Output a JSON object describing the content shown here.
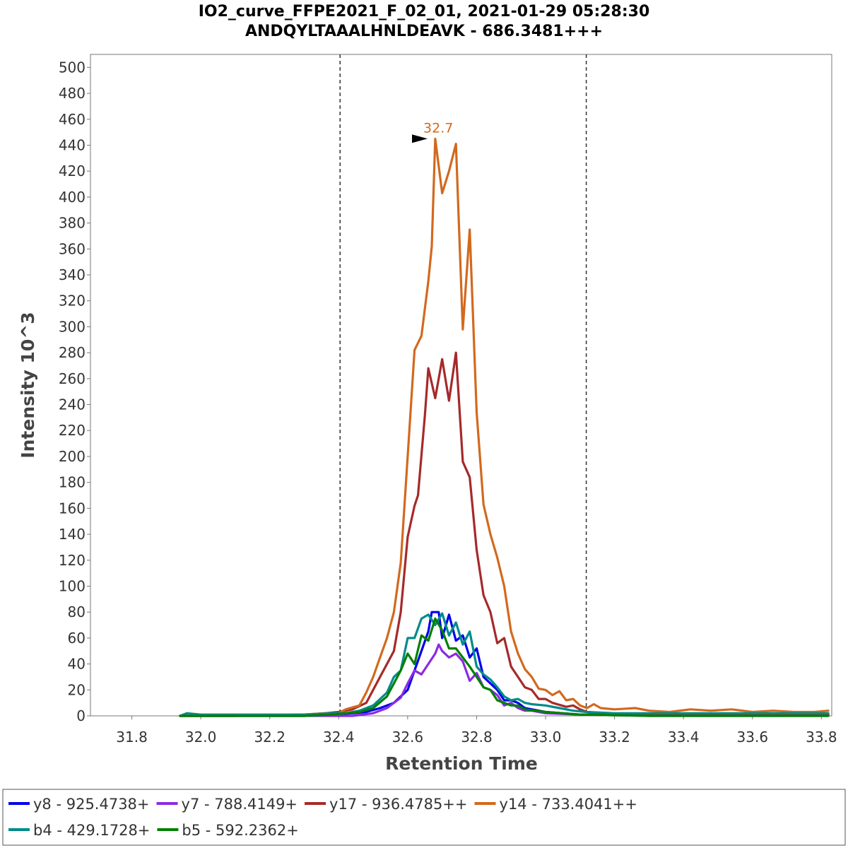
{
  "chart_data": {
    "type": "line",
    "title": "IO2_curve_FFPE2021_F_02_01, 2021-01-29 05:28:30",
    "subtitle": "ANDQYLTAAALHNLDEAVK - 686.3481+++",
    "xlabel": "Retention Time",
    "ylabel": "Intensity 10^3",
    "xlim": [
      31.68,
      33.83
    ],
    "ylim": [
      0,
      510
    ],
    "x_ticks": [
      "31.8",
      "32.0",
      "32.2",
      "32.4",
      "32.6",
      "32.8",
      "33.0",
      "33.2",
      "33.4",
      "33.6",
      "33.8"
    ],
    "y_ticks": [
      "0",
      "20",
      "40",
      "60",
      "80",
      "100",
      "120",
      "140",
      "160",
      "180",
      "200",
      "220",
      "240",
      "260",
      "280",
      "300",
      "320",
      "340",
      "360",
      "380",
      "400",
      "420",
      "440",
      "460",
      "480",
      "500"
    ],
    "integration_bounds": [
      32.404,
      33.118
    ],
    "peak_annotation": {
      "label": "32.7",
      "x": 32.67,
      "y": 445,
      "color": "#d2691e"
    },
    "legend_position": "bottom",
    "series": [
      {
        "name": "y8 - 925.4738+",
        "color": "#0000ee",
        "points": [
          [
            31.94,
            0
          ],
          [
            32.0,
            0
          ],
          [
            32.1,
            0
          ],
          [
            32.2,
            0
          ],
          [
            32.3,
            0
          ],
          [
            32.38,
            1
          ],
          [
            32.44,
            2
          ],
          [
            32.48,
            3
          ],
          [
            32.52,
            6
          ],
          [
            32.56,
            10
          ],
          [
            32.6,
            20
          ],
          [
            32.62,
            35
          ],
          [
            32.64,
            50
          ],
          [
            32.66,
            65
          ],
          [
            32.67,
            80
          ],
          [
            32.69,
            80
          ],
          [
            32.7,
            60
          ],
          [
            32.72,
            78
          ],
          [
            32.74,
            58
          ],
          [
            32.76,
            62
          ],
          [
            32.78,
            45
          ],
          [
            32.8,
            52
          ],
          [
            32.82,
            30
          ],
          [
            32.84,
            25
          ],
          [
            32.86,
            20
          ],
          [
            32.88,
            12
          ],
          [
            32.9,
            12
          ],
          [
            32.92,
            10
          ],
          [
            32.94,
            6
          ],
          [
            32.96,
            5
          ],
          [
            33.0,
            3
          ],
          [
            33.05,
            2
          ],
          [
            33.1,
            1
          ],
          [
            33.2,
            1
          ],
          [
            33.4,
            1
          ],
          [
            33.6,
            1
          ],
          [
            33.82,
            1
          ]
        ]
      },
      {
        "name": "y7 - 788.4149+",
        "color": "#8a2be2",
        "points": [
          [
            31.94,
            0
          ],
          [
            32.1,
            0
          ],
          [
            32.3,
            0
          ],
          [
            32.44,
            0
          ],
          [
            32.5,
            2
          ],
          [
            32.54,
            6
          ],
          [
            32.58,
            14
          ],
          [
            32.6,
            25
          ],
          [
            32.62,
            35
          ],
          [
            32.64,
            32
          ],
          [
            32.66,
            40
          ],
          [
            32.68,
            48
          ],
          [
            32.69,
            55
          ],
          [
            32.7,
            50
          ],
          [
            32.72,
            45
          ],
          [
            32.74,
            48
          ],
          [
            32.76,
            42
          ],
          [
            32.78,
            27
          ],
          [
            32.8,
            33
          ],
          [
            32.82,
            22
          ],
          [
            32.84,
            20
          ],
          [
            32.86,
            16
          ],
          [
            32.88,
            8
          ],
          [
            32.9,
            10
          ],
          [
            32.92,
            6
          ],
          [
            32.94,
            4
          ],
          [
            32.96,
            4
          ],
          [
            33.0,
            2
          ],
          [
            33.1,
            1
          ],
          [
            33.3,
            0
          ],
          [
            33.5,
            0
          ],
          [
            33.82,
            0
          ]
        ]
      },
      {
        "name": "y17 - 936.4785++",
        "color": "#a52a2a",
        "points": [
          [
            31.94,
            0
          ],
          [
            32.1,
            0
          ],
          [
            32.3,
            1
          ],
          [
            32.36,
            2
          ],
          [
            32.4,
            3
          ],
          [
            32.44,
            5
          ],
          [
            32.48,
            10
          ],
          [
            32.52,
            30
          ],
          [
            32.54,
            40
          ],
          [
            32.56,
            50
          ],
          [
            32.58,
            80
          ],
          [
            32.6,
            138
          ],
          [
            32.62,
            162
          ],
          [
            32.63,
            170
          ],
          [
            32.65,
            232
          ],
          [
            32.66,
            268
          ],
          [
            32.68,
            245
          ],
          [
            32.7,
            275
          ],
          [
            32.72,
            243
          ],
          [
            32.74,
            280
          ],
          [
            32.76,
            196
          ],
          [
            32.78,
            184
          ],
          [
            32.8,
            128
          ],
          [
            32.82,
            93
          ],
          [
            32.84,
            80
          ],
          [
            32.86,
            56
          ],
          [
            32.88,
            60
          ],
          [
            32.9,
            38
          ],
          [
            32.92,
            30
          ],
          [
            32.94,
            22
          ],
          [
            32.96,
            20
          ],
          [
            32.98,
            13
          ],
          [
            33.0,
            13
          ],
          [
            33.02,
            10
          ],
          [
            33.06,
            7
          ],
          [
            33.08,
            8
          ],
          [
            33.1,
            5
          ],
          [
            33.12,
            3
          ],
          [
            33.2,
            1
          ],
          [
            33.4,
            1
          ],
          [
            33.6,
            1
          ],
          [
            33.82,
            1
          ]
        ]
      },
      {
        "name": "y14 - 733.4041++",
        "color": "#d2691e",
        "points": [
          [
            31.94,
            0
          ],
          [
            32.1,
            0
          ],
          [
            32.3,
            1
          ],
          [
            32.36,
            2
          ],
          [
            32.4,
            2
          ],
          [
            32.42,
            5
          ],
          [
            32.46,
            8
          ],
          [
            32.48,
            18
          ],
          [
            32.5,
            30
          ],
          [
            32.52,
            45
          ],
          [
            32.54,
            60
          ],
          [
            32.56,
            80
          ],
          [
            32.58,
            118
          ],
          [
            32.6,
            200
          ],
          [
            32.62,
            282
          ],
          [
            32.64,
            293
          ],
          [
            32.66,
            335
          ],
          [
            32.67,
            362
          ],
          [
            32.68,
            445
          ],
          [
            32.7,
            403
          ],
          [
            32.72,
            420
          ],
          [
            32.74,
            441
          ],
          [
            32.76,
            298
          ],
          [
            32.78,
            375
          ],
          [
            32.8,
            234
          ],
          [
            32.82,
            163
          ],
          [
            32.84,
            140
          ],
          [
            32.86,
            122
          ],
          [
            32.88,
            100
          ],
          [
            32.9,
            65
          ],
          [
            32.92,
            48
          ],
          [
            32.94,
            36
          ],
          [
            32.96,
            30
          ],
          [
            32.98,
            21
          ],
          [
            33.0,
            20
          ],
          [
            33.02,
            16
          ],
          [
            33.04,
            19
          ],
          [
            33.06,
            12
          ],
          [
            33.08,
            13
          ],
          [
            33.1,
            8
          ],
          [
            33.12,
            6
          ],
          [
            33.14,
            9
          ],
          [
            33.16,
            6
          ],
          [
            33.2,
            5
          ],
          [
            33.26,
            6
          ],
          [
            33.3,
            4
          ],
          [
            33.36,
            3
          ],
          [
            33.42,
            5
          ],
          [
            33.48,
            4
          ],
          [
            33.54,
            5
          ],
          [
            33.6,
            3
          ],
          [
            33.66,
            4
          ],
          [
            33.72,
            3
          ],
          [
            33.78,
            3
          ],
          [
            33.82,
            4
          ]
        ]
      },
      {
        "name": "b4 - 429.1728+",
        "color": "#008b8b",
        "points": [
          [
            31.94,
            0
          ],
          [
            31.96,
            2
          ],
          [
            32.0,
            1
          ],
          [
            32.05,
            1
          ],
          [
            32.1,
            1
          ],
          [
            32.2,
            1
          ],
          [
            32.3,
            1
          ],
          [
            32.38,
            2
          ],
          [
            32.42,
            2
          ],
          [
            32.46,
            4
          ],
          [
            32.5,
            8
          ],
          [
            32.54,
            18
          ],
          [
            32.56,
            30
          ],
          [
            32.58,
            35
          ],
          [
            32.6,
            60
          ],
          [
            32.62,
            60
          ],
          [
            32.64,
            75
          ],
          [
            32.66,
            78
          ],
          [
            32.68,
            70
          ],
          [
            32.7,
            79
          ],
          [
            32.72,
            62
          ],
          [
            32.74,
            72
          ],
          [
            32.76,
            55
          ],
          [
            32.78,
            65
          ],
          [
            32.8,
            38
          ],
          [
            32.82,
            32
          ],
          [
            32.84,
            28
          ],
          [
            32.86,
            22
          ],
          [
            32.88,
            15
          ],
          [
            32.9,
            12
          ],
          [
            32.92,
            13
          ],
          [
            32.94,
            10
          ],
          [
            32.96,
            9
          ],
          [
            33.0,
            8
          ],
          [
            33.04,
            6
          ],
          [
            33.08,
            4
          ],
          [
            33.12,
            3
          ],
          [
            33.2,
            2
          ],
          [
            33.4,
            2
          ],
          [
            33.6,
            2
          ],
          [
            33.82,
            2
          ]
        ]
      },
      {
        "name": "b5 - 592.2362+",
        "color": "#008000",
        "points": [
          [
            31.94,
            0
          ],
          [
            32.1,
            0
          ],
          [
            32.3,
            0
          ],
          [
            32.38,
            1
          ],
          [
            32.42,
            2
          ],
          [
            32.46,
            3
          ],
          [
            32.5,
            6
          ],
          [
            32.54,
            15
          ],
          [
            32.56,
            25
          ],
          [
            32.58,
            35
          ],
          [
            32.6,
            48
          ],
          [
            32.62,
            40
          ],
          [
            32.64,
            62
          ],
          [
            32.66,
            58
          ],
          [
            32.68,
            75
          ],
          [
            32.7,
            66
          ],
          [
            32.72,
            52
          ],
          [
            32.74,
            52
          ],
          [
            32.76,
            45
          ],
          [
            32.78,
            38
          ],
          [
            32.8,
            30
          ],
          [
            32.82,
            22
          ],
          [
            32.84,
            20
          ],
          [
            32.86,
            12
          ],
          [
            32.88,
            10
          ],
          [
            32.9,
            8
          ],
          [
            32.92,
            8
          ],
          [
            32.94,
            5
          ],
          [
            33.0,
            3
          ],
          [
            33.1,
            1
          ],
          [
            33.3,
            0
          ],
          [
            33.6,
            0
          ],
          [
            33.82,
            0
          ]
        ]
      }
    ]
  }
}
